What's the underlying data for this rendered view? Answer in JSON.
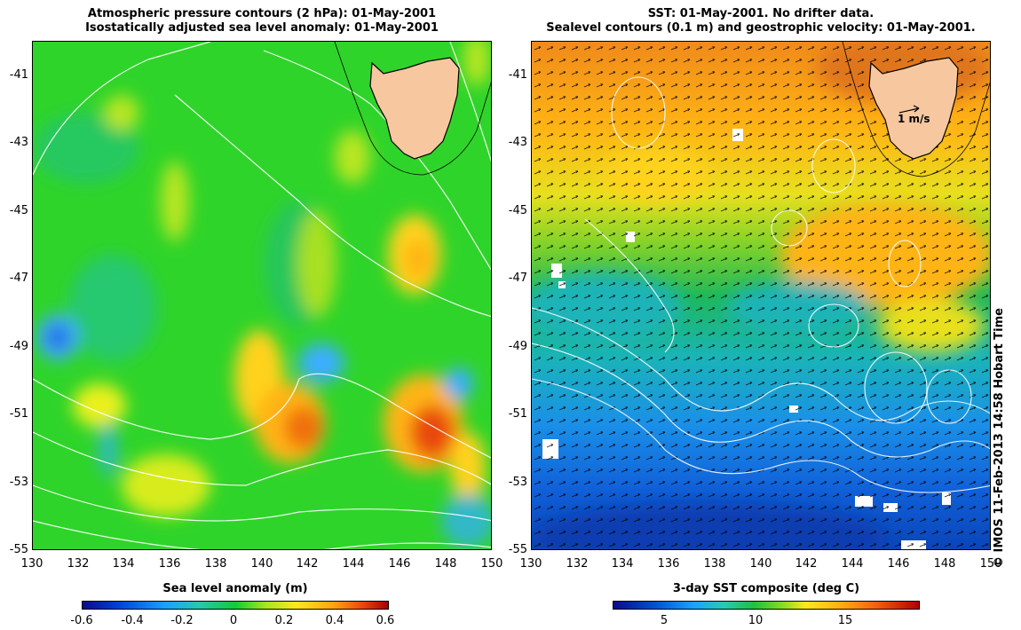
{
  "left_panel": {
    "title_line1": "Atmospheric pressure contours (2 hPa): 01-May-2001",
    "title_line2": "Isostatically adjusted sea level anomaly: 01-May-2001",
    "colorbar": {
      "label": "Sea level anomaly (m)",
      "ticks": [
        "-0.6",
        "-0.4",
        "-0.2",
        "0",
        "0.2",
        "0.4",
        "0.6"
      ]
    }
  },
  "right_panel": {
    "title_line1": "SST: 01-May-2001. No drifter data.",
    "title_line2": "Sealevel contours (0.1 m) and geostrophic velocity: 01-May-2001.",
    "scale_arrow_label": "1 m/s",
    "colorbar": {
      "label": "3-day SST composite (deg C)",
      "ticks": [
        "5",
        "10",
        "15"
      ]
    }
  },
  "axes": {
    "y_ticks": [
      "-41",
      "-43",
      "-45",
      "-47",
      "-49",
      "-51",
      "-53",
      "-55"
    ],
    "x_ticks": [
      "130",
      "132",
      "134",
      "136",
      "138",
      "140",
      "142",
      "144",
      "146",
      "148",
      "150"
    ]
  },
  "copyright": "© IMOS 11-Feb-2013 14:58 Hobart Time",
  "colors": {
    "land": "#f7c7a0",
    "sla_background": "#2fd42a",
    "sst_warm": "#f08a1a",
    "sst_cold": "#1070e0"
  }
}
